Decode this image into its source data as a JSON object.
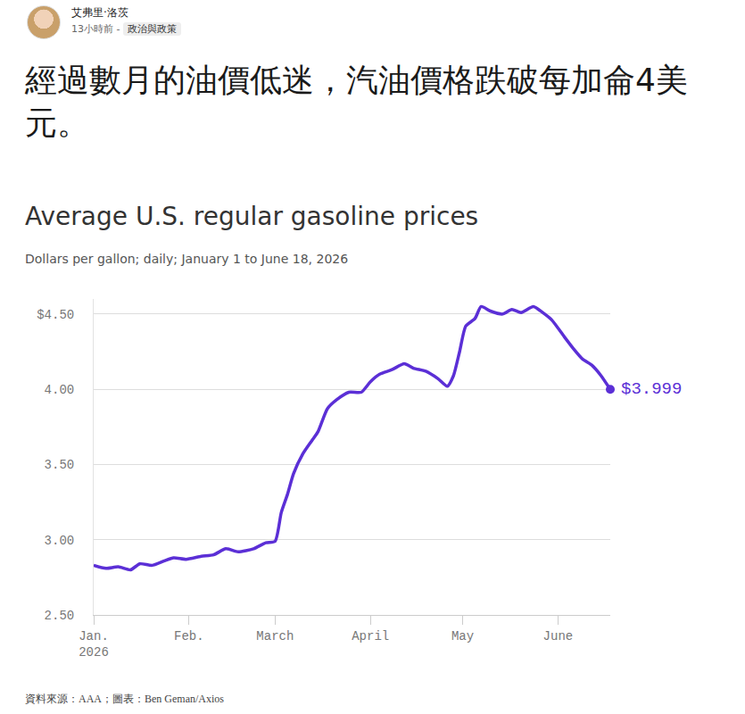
{
  "header": {
    "author": "艾弗里·洛茨",
    "time": "13小時前 -",
    "tag": "政治與政策"
  },
  "headline": "經過數月的油價低迷，汽油價格跌破每加侖4美元。",
  "chart_data": {
    "type": "line",
    "title": "Average U.S. regular gasoline prices",
    "subtitle": "Dollars per gallon; daily; January 1 to June 18, 2026",
    "x": [
      "2026-01-01",
      "2026-01-05",
      "2026-01-09",
      "2026-01-13",
      "2026-01-16",
      "2026-01-20",
      "2026-01-24",
      "2026-01-27",
      "2026-01-31",
      "2026-02-05",
      "2026-02-09",
      "2026-02-13",
      "2026-02-17",
      "2026-02-22",
      "2026-02-26",
      "2026-03-01",
      "2026-03-03",
      "2026-03-05",
      "2026-03-07",
      "2026-03-10",
      "2026-03-13",
      "2026-03-15",
      "2026-03-18",
      "2026-03-21",
      "2026-03-25",
      "2026-03-29",
      "2026-04-01",
      "2026-04-04",
      "2026-04-08",
      "2026-04-12",
      "2026-04-15",
      "2026-04-19",
      "2026-04-23",
      "2026-04-26",
      "2026-04-28",
      "2026-04-30",
      "2026-05-02",
      "2026-05-05",
      "2026-05-07",
      "2026-05-10",
      "2026-05-14",
      "2026-05-17",
      "2026-05-20",
      "2026-05-24",
      "2026-05-27",
      "2026-05-30",
      "2026-06-03",
      "2026-06-06",
      "2026-06-09",
      "2026-06-12",
      "2026-06-15",
      "2026-06-18"
    ],
    "values": [
      2.83,
      2.81,
      2.82,
      2.8,
      2.84,
      2.83,
      2.86,
      2.88,
      2.87,
      2.89,
      2.9,
      2.94,
      2.92,
      2.94,
      2.98,
      2.99,
      3.18,
      3.3,
      3.44,
      3.57,
      3.66,
      3.72,
      3.87,
      3.93,
      3.98,
      3.98,
      4.05,
      4.1,
      4.13,
      4.17,
      4.14,
      4.12,
      4.07,
      4.02,
      4.09,
      4.25,
      4.42,
      4.47,
      4.55,
      4.52,
      4.5,
      4.53,
      4.51,
      4.55,
      4.51,
      4.46,
      4.35,
      4.27,
      4.2,
      4.16,
      4.09,
      3.999
    ],
    "color": "#5b2fd6",
    "xlim": [
      "2026-01-01",
      "2026-06-18"
    ],
    "xticks": [
      {
        "value": "2026-01-01",
        "label": "Jan.\n2026"
      },
      {
        "value": "2026-02-01",
        "label": "Feb."
      },
      {
        "value": "2026-03-01",
        "label": "March"
      },
      {
        "value": "2026-04-01",
        "label": "April"
      },
      {
        "value": "2026-05-01",
        "label": "May"
      },
      {
        "value": "2026-06-01",
        "label": "June"
      }
    ],
    "ylim": [
      2.5,
      4.6
    ],
    "yticks": [
      {
        "value": 2.5,
        "label": "2.50"
      },
      {
        "value": 3,
        "label": "3.00"
      },
      {
        "value": 3.5,
        "label": "3.50"
      },
      {
        "value": 4,
        "label": "4.00"
      },
      {
        "value": 4.5,
        "label": "$4.50"
      }
    ],
    "grid": true,
    "annotations": [
      {
        "x": "2026-06-18",
        "y": 3.999,
        "text": "$3.999"
      }
    ]
  },
  "source": "資料來源：AAA；圖表：Ben Geman/Axios"
}
